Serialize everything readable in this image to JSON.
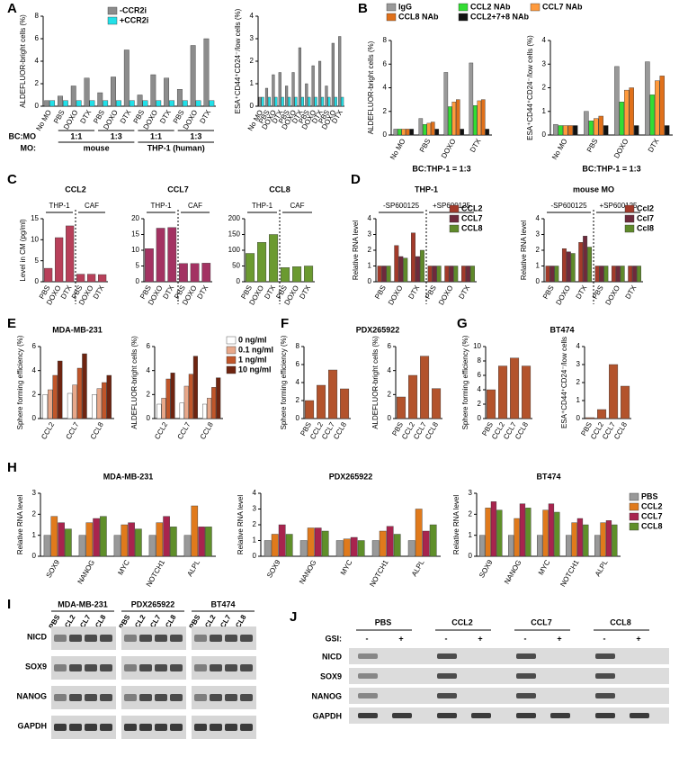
{
  "chart_data": [
    {
      "type": "bar",
      "panel": "A",
      "ylabel": "ALDEFLUOR-bright cells (%)",
      "categories": [
        "No MO",
        "PBS",
        "DOXO",
        "DTX",
        "PBS",
        "DOXO",
        "DTX",
        "PBS",
        "DOXO",
        "DTX",
        "PBS",
        "DOXO",
        "DTX"
      ],
      "series": [
        {
          "name": "-CCR2i",
          "color": "#8c8c8c",
          "values": [
            0.5,
            0.9,
            1.8,
            2.5,
            1.2,
            2.6,
            5.0,
            1.0,
            2.8,
            2.5,
            1.5,
            5.4,
            6.0
          ]
        },
        {
          "name": "+CCR2i",
          "color": "#22e0e8",
          "values": [
            0.5,
            0.5,
            0.5,
            0.5,
            0.5,
            0.5,
            0.5,
            0.5,
            0.5,
            0.5,
            0.5,
            0.5,
            0.5
          ]
        }
      ],
      "group_rows": [
        {
          "name": "BC:MO",
          "labels": [
            "1:1",
            "1:3",
            "1:1",
            "1:3"
          ]
        },
        {
          "name": "MO:",
          "labels": [
            "mouse",
            "THP-1 (human)"
          ]
        }
      ],
      "ylim": [
        0,
        8
      ],
      "yticks": [
        0,
        2,
        4,
        6,
        8
      ]
    },
    {
      "type": "bar",
      "ylabel": "ESA⁺CD44⁺CD24⁻/low cells (%)",
      "categories": [
        "No MO",
        "PBS",
        "DOXO",
        "DTX",
        "PBS",
        "DOXO",
        "DTX",
        "PBS",
        "DOXO",
        "DTX",
        "PBS",
        "DOXO",
        "DTX"
      ],
      "series": [
        {
          "color": "#8c8c8c",
          "values": [
            0.4,
            0.8,
            1.4,
            1.5,
            0.9,
            1.5,
            2.6,
            1.0,
            1.8,
            2.0,
            0.9,
            2.8,
            3.1
          ]
        },
        {
          "color": "#22e0e8",
          "values": [
            0.4,
            0.4,
            0.4,
            0.4,
            0.4,
            0.4,
            0.4,
            0.4,
            0.4,
            0.4,
            0.4,
            0.4,
            0.4
          ]
        }
      ],
      "ylim": [
        0,
        4
      ],
      "yticks": [
        0,
        1,
        2,
        3,
        4
      ]
    },
    {
      "type": "bar",
      "panel": "B",
      "ylabel": "ALDEFLUOR-bright cells (%)",
      "xlabel": "BC:THP-1 = 1:3",
      "categories": [
        "No MO",
        "PBS",
        "DOXO",
        "DTX"
      ],
      "series": [
        {
          "name": "IgG",
          "color": "#999999",
          "values": [
            0.5,
            1.4,
            5.3,
            6.1
          ]
        },
        {
          "name": "CCL2 NAb",
          "color": "#33dd33",
          "values": [
            0.5,
            0.9,
            2.4,
            2.5
          ]
        },
        {
          "name": "CCL7 NAb",
          "color": "#ff9a3c",
          "values": [
            0.5,
            1.0,
            2.8,
            2.9
          ]
        },
        {
          "name": "CCL8 NAb",
          "color": "#e0701a",
          "values": [
            0.5,
            1.1,
            3.0,
            3.0
          ]
        },
        {
          "name": "CCL2+7+8 NAb",
          "color": "#111111",
          "values": [
            0.5,
            0.5,
            0.5,
            0.5
          ]
        }
      ],
      "ylim": [
        0,
        8
      ],
      "yticks": [
        0,
        2,
        4,
        6,
        8
      ]
    },
    {
      "type": "bar",
      "ylabel": "ESA⁺CD44⁺CD24⁻/low cells (%)",
      "xlabel": "BC:THP-1 = 1:3",
      "categories": [
        "No MO",
        "PBS",
        "DOXO",
        "DTX"
      ],
      "series": [
        {
          "color": "#999999",
          "values": [
            0.45,
            1.0,
            2.9,
            3.1
          ]
        },
        {
          "color": "#33dd33",
          "values": [
            0.4,
            0.6,
            1.4,
            1.7
          ]
        },
        {
          "color": "#ff9a3c",
          "values": [
            0.4,
            0.7,
            1.9,
            2.3
          ]
        },
        {
          "color": "#e0701a",
          "values": [
            0.4,
            0.8,
            2.0,
            2.5
          ]
        },
        {
          "color": "#111111",
          "values": [
            0.4,
            0.4,
            0.4,
            0.4
          ]
        }
      ],
      "ylim": [
        0,
        4
      ],
      "yticks": [
        0,
        1,
        2,
        3,
        4
      ]
    },
    {
      "type": "bar",
      "panel": "C",
      "title": "CCL2",
      "ylabel": "Level in CM (pg/ml)",
      "groups": [
        "THP-1",
        "CAF"
      ],
      "categories": [
        "PBS",
        "DOXO",
        "DTX",
        "PBS",
        "DOXO",
        "DTX"
      ],
      "values": [
        3.2,
        10.5,
        13.3,
        1.8,
        1.8,
        1.7
      ],
      "color": "#b8405a",
      "ylim": [
        0,
        15
      ],
      "yticks": [
        0,
        5,
        10,
        15
      ]
    },
    {
      "type": "bar",
      "title": "CCL7",
      "groups": [
        "THP-1",
        "CAF"
      ],
      "categories": [
        "PBS",
        "DOXO",
        "DTX",
        "PBS",
        "DOXO",
        "DTX"
      ],
      "values": [
        10.5,
        17,
        17.2,
        5.8,
        5.8,
        5.9
      ],
      "color": "#a33262",
      "ylim": [
        0,
        20
      ],
      "yticks": [
        0,
        5,
        10,
        15,
        20
      ]
    },
    {
      "type": "bar",
      "title": "CCL8",
      "groups": [
        "THP-1",
        "CAF"
      ],
      "categories": [
        "PBS",
        "DOXO",
        "DTX",
        "PBS",
        "DOXO",
        "DTX"
      ],
      "values": [
        90,
        125,
        150,
        45,
        48,
        50
      ],
      "color": "#6b9a30",
      "ylim": [
        0,
        200
      ],
      "yticks": [
        0,
        50,
        100,
        150,
        200
      ]
    },
    {
      "type": "bar",
      "panel": "D",
      "title": "THP-1",
      "ylabel": "Relative RNA level",
      "groups": [
        "-SP600125",
        "+SP600125"
      ],
      "categories": [
        "PBS",
        "DOXO",
        "DTX",
        "PBS",
        "DOXO",
        "DTX"
      ],
      "series": [
        {
          "name": "CCL2",
          "color": "#a33a2a",
          "values": [
            1,
            2.3,
            3.1,
            1,
            1,
            1
          ]
        },
        {
          "name": "CCL7",
          "color": "#6e2a3c",
          "values": [
            1,
            1.6,
            1.6,
            1,
            1,
            1
          ]
        },
        {
          "name": "CCL8",
          "color": "#5f8a2a",
          "values": [
            1,
            1.5,
            2.0,
            1,
            1,
            1
          ]
        }
      ],
      "ylim": [
        0,
        4
      ],
      "yticks": [
        0,
        1,
        2,
        3,
        4
      ]
    },
    {
      "type": "bar",
      "title": "mouse MO",
      "ylabel": "Relative RNA level",
      "groups": [
        "-SP600125",
        "+SP600125"
      ],
      "categories": [
        "PBS",
        "DOXO",
        "DTX",
        "PBS",
        "DOXO",
        "DTX"
      ],
      "series": [
        {
          "name": "Ccl2",
          "color": "#a33a2a",
          "values": [
            1,
            2.1,
            2.5,
            1,
            1,
            1
          ]
        },
        {
          "name": "Ccl7",
          "color": "#6e2a3c",
          "values": [
            1,
            1.9,
            2.9,
            1,
            1,
            1
          ]
        },
        {
          "name": "Ccl8",
          "color": "#5f8a2a",
          "values": [
            1,
            1.8,
            2.2,
            1,
            1,
            1
          ]
        }
      ],
      "ylim": [
        0,
        4
      ],
      "yticks": [
        0,
        1,
        2,
        3,
        4
      ]
    },
    {
      "type": "bar",
      "panel": "E",
      "title": "MDA-MB-231",
      "ylabel": "Sphere forming efficiency (%)",
      "categories": [
        "CCL2",
        "CCL7",
        "CCL8"
      ],
      "series": [
        {
          "name": "0 ng/ml",
          "color": "#ffffff",
          "values": [
            2.0,
            2.1,
            2.0
          ]
        },
        {
          "name": "0.1 ng/ml",
          "color": "#e8a88a",
          "values": [
            2.4,
            2.8,
            2.5
          ]
        },
        {
          "name": "1 ng/ml",
          "color": "#c0562a",
          "values": [
            3.6,
            4.2,
            3.0
          ]
        },
        {
          "name": "10 ng/ml",
          "color": "#6e2410",
          "values": [
            4.8,
            5.4,
            3.6
          ]
        }
      ],
      "ylim": [
        0,
        6
      ],
      "yticks": [
        0,
        2,
        4,
        6
      ]
    },
    {
      "type": "bar",
      "ylabel": "ALDEFLUOR-bright cells (%)",
      "categories": [
        "CCL2",
        "CCL7",
        "CCL8"
      ],
      "series": [
        {
          "color": "#ffffff",
          "values": [
            1.2,
            1.3,
            1.2
          ]
        },
        {
          "color": "#e8a88a",
          "values": [
            1.7,
            2.7,
            1.7
          ]
        },
        {
          "color": "#c0562a",
          "values": [
            3.3,
            3.7,
            2.6
          ]
        },
        {
          "color": "#6e2410",
          "values": [
            3.8,
            5.2,
            3.4
          ]
        }
      ],
      "ylim": [
        0,
        6
      ],
      "yticks": [
        0,
        2,
        4,
        6
      ]
    },
    {
      "type": "bar",
      "panel": "F",
      "title": "PDX265922",
      "ylabel": "Sphere forming efficiency (%)",
      "categories": [
        "PBS",
        "CCL2",
        "CCL7",
        "CCL8"
      ],
      "values": [
        2.0,
        3.7,
        5.4,
        3.3
      ],
      "color": "#b3532c",
      "ylim": [
        0,
        8
      ],
      "yticks": [
        0,
        2,
        4,
        6,
        8
      ]
    },
    {
      "type": "bar",
      "ylabel": "ALDEFLUOR-bright cells (%)",
      "categories": [
        "PBS",
        "CCL2",
        "CCL7",
        "CCL8"
      ],
      "values": [
        1.8,
        3.6,
        5.2,
        2.5
      ],
      "color": "#b3532c",
      "ylim": [
        0,
        6
      ],
      "yticks": [
        0,
        2,
        4,
        6
      ]
    },
    {
      "type": "bar",
      "panel": "G",
      "title": "BT474",
      "ylabel": "Sphere forming efficiency (%)",
      "categories": [
        "PBS",
        "CCL2",
        "CCL7",
        "CCL8"
      ],
      "values": [
        4.0,
        7.3,
        8.4,
        7.3
      ],
      "color": "#b3532c",
      "ylim": [
        0,
        10
      ],
      "yticks": [
        0,
        2,
        4,
        6,
        8,
        10
      ]
    },
    {
      "type": "bar",
      "ylabel": "ESA⁺CD44⁺CD24⁻/low cells",
      "categories": [
        "PBS",
        "CCL2",
        "CCL7",
        "CCL8"
      ],
      "values": [
        0.05,
        0.5,
        3.0,
        1.8
      ],
      "color": "#b3532c",
      "ylim": [
        0,
        4
      ],
      "yticks": [
        0,
        1,
        2,
        3,
        4
      ]
    },
    {
      "type": "bar",
      "panel": "H",
      "title": "MDA-MB-231",
      "ylabel": "Relative RNA level",
      "categories": [
        "SOX9",
        "NANOG",
        "MYC",
        "NOTCH1",
        "ALPL"
      ],
      "series": [
        {
          "color": "#999999",
          "values": [
            1,
            1,
            1,
            1,
            1
          ]
        },
        {
          "color": "#e07a1c",
          "values": [
            1.9,
            1.6,
            1.5,
            1.6,
            2.4
          ]
        },
        {
          "color": "#a8244e",
          "values": [
            1.6,
            1.8,
            1.6,
            1.9,
            1.4
          ]
        },
        {
          "color": "#5f8f2a",
          "values": [
            1.3,
            1.9,
            1.3,
            1.4,
            1.4
          ]
        }
      ],
      "ylim": [
        0,
        3
      ],
      "yticks": [
        0,
        1,
        2,
        3
      ]
    },
    {
      "type": "bar",
      "title": "PDX265922",
      "ylabel": "Relative RNA level",
      "categories": [
        "SOX9",
        "NANOG",
        "MYC",
        "NOTCH1",
        "ALPL"
      ],
      "series": [
        {
          "color": "#999999",
          "values": [
            1,
            1,
            1,
            1,
            1
          ]
        },
        {
          "color": "#e07a1c",
          "values": [
            1.4,
            1.8,
            1.1,
            1.6,
            3.0
          ]
        },
        {
          "color": "#a8244e",
          "values": [
            2.0,
            1.8,
            1.2,
            1.9,
            1.6
          ]
        },
        {
          "color": "#5f8f2a",
          "values": [
            1.4,
            1.6,
            1.0,
            1.4,
            2.0
          ]
        }
      ],
      "ylim": [
        0,
        4
      ],
      "yticks": [
        0,
        1,
        2,
        3,
        4
      ]
    },
    {
      "type": "bar",
      "title": "BT474",
      "ylabel": "Relative RNA level",
      "categories": [
        "SOX9",
        "NANOG",
        "MYC",
        "NOTCH1",
        "ALPL"
      ],
      "series": [
        {
          "name": "PBS",
          "color": "#999999",
          "values": [
            1,
            1,
            1,
            1,
            1
          ]
        },
        {
          "name": "CCL2",
          "color": "#e07a1c",
          "values": [
            2.3,
            1.8,
            2.2,
            1.6,
            1.6
          ]
        },
        {
          "name": "CCL7",
          "color": "#a8244e",
          "values": [
            2.6,
            2.5,
            2.5,
            1.8,
            1.7
          ]
        },
        {
          "name": "CCL8",
          "color": "#5f8f2a",
          "values": [
            2.2,
            2.3,
            2.1,
            1.5,
            1.5
          ]
        }
      ],
      "ylim": [
        0,
        3
      ],
      "yticks": [
        0,
        1,
        2,
        3
      ]
    }
  ],
  "blots": [
    {
      "panel": "I",
      "groups": [
        "MDA-MB-231",
        "PDX265922",
        "BT474"
      ],
      "lanes": [
        "PBS",
        "CCL2",
        "CCL7",
        "CCL8"
      ],
      "rows": [
        "NICD",
        "SOX9",
        "NANOG",
        "GAPDH"
      ]
    },
    {
      "panel": "J",
      "lanes": [
        "PBS",
        "CCL2",
        "CCL7",
        "CCL8"
      ],
      "treatment_label": "GSI:",
      "treatment": [
        "-",
        "+"
      ],
      "rows": [
        "NICD",
        "SOX9",
        "NANOG",
        "GAPDH"
      ]
    }
  ]
}
